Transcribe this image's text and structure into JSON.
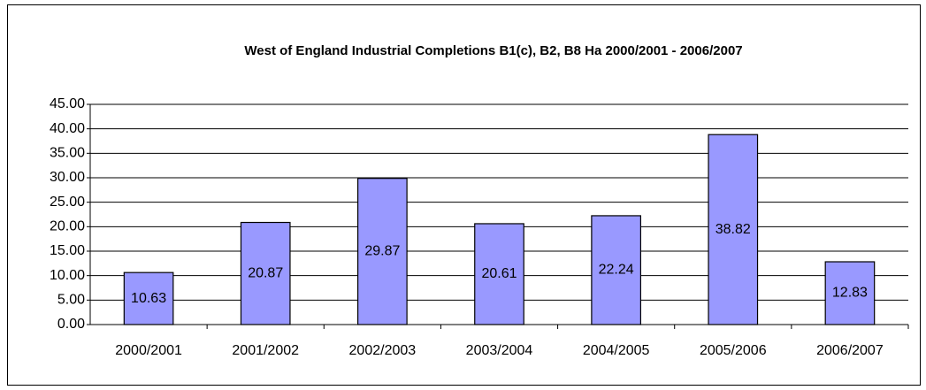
{
  "chart_data": {
    "type": "bar",
    "title": "West of England Industrial Completions B1(c), B2, B8 Ha 2000/2001 - 2006/2007",
    "categories": [
      "2000/2001",
      "2001/2002",
      "2002/2003",
      "2003/2004",
      "2004/2005",
      "2005/2006",
      "2006/2007"
    ],
    "values": [
      10.63,
      20.87,
      29.87,
      20.61,
      22.24,
      38.82,
      12.83
    ],
    "color": "#9999ff",
    "ylim": [
      0,
      45
    ],
    "yticks": [
      {
        "value": 0,
        "label": "0.00"
      },
      {
        "value": 5,
        "label": "5.00"
      },
      {
        "value": 10,
        "label": "10.00"
      },
      {
        "value": 15,
        "label": "15.00"
      },
      {
        "value": 20,
        "label": "20.00"
      },
      {
        "value": 25,
        "label": "25.00"
      },
      {
        "value": 30,
        "label": "30.00"
      },
      {
        "value": 35,
        "label": "35.00"
      },
      {
        "value": 40,
        "label": "40.00"
      },
      {
        "value": 45,
        "label": "45.00"
      }
    ],
    "grid": true
  }
}
